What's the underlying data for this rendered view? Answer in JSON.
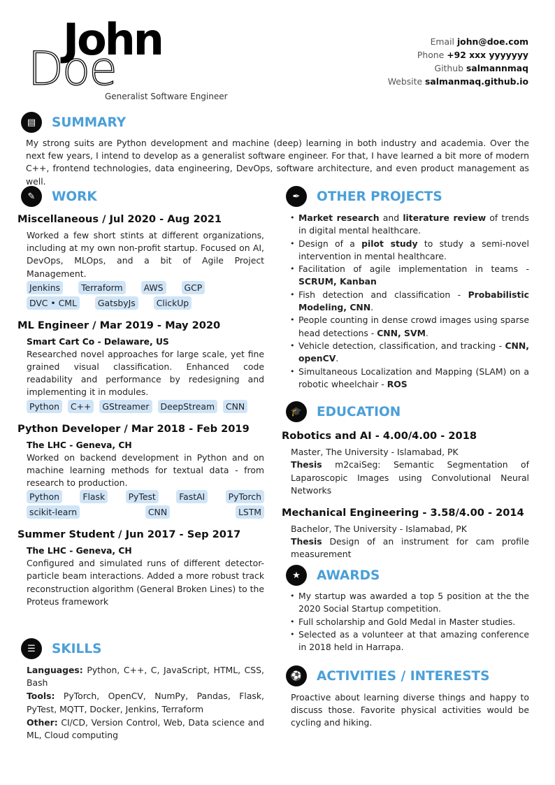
{
  "header": {
    "first_name": "John",
    "last_name": "Doe",
    "tagline": "Generalist Software Engineer",
    "contacts": [
      {
        "label": "Email",
        "value": "john@doe.com"
      },
      {
        "label": "Phone",
        "value": "+92 xxx yyyyyyy"
      },
      {
        "label": "Github",
        "value": "salmannmaq"
      },
      {
        "label": "Website",
        "value": "salmanmaq.github.io"
      }
    ]
  },
  "summary": {
    "title": "SUMMARY",
    "icon": "document-icon",
    "text": "My strong suits are Python development and machine (deep) learning in both industry and academia. Over the next few years, I intend to develop as a generalist software engineer. For that, I have learned a bit more of modern C++, frontend technologies, data engineering, DevOps, software architecture, and even product management as well."
  },
  "work": {
    "title": "WORK",
    "icon": "pencil-icon",
    "jobs": [
      {
        "title": "Miscellaneous / Jul 2020 - Aug 2021",
        "company": "",
        "desc": "Worked a few short stints at different organizations, including at my own non-profit startup. Focused on AI, DevOps, MLOps, and a bit of Agile Project Management.",
        "tags": [
          "Jenkins",
          "Terraform",
          "AWS",
          "GCP",
          "DVC • CML",
          "GatsbyJs",
          "ClickUp"
        ]
      },
      {
        "title": "ML Engineer / Mar 2019 - May 2020",
        "company": "Smart Cart Co - Delaware, US",
        "desc": "Researched novel approaches for large scale, yet fine grained visual classification. Enhanced code readability and performance by redesigning and implementing it in modules.",
        "tags": [
          "Python",
          "C++",
          "GStreamer",
          "DeepStream",
          "CNN"
        ]
      },
      {
        "title": "Python Developer / Mar 2018 - Feb 2019",
        "company": "The LHC - Geneva, CH",
        "desc": "Worked on backend development in Python and on machine learning methods for textual data - from research to production.",
        "tags": [
          "Python",
          "Flask",
          "PyTest",
          "FastAI",
          "PyTorch",
          "scikit-learn",
          "CNN",
          "LSTM"
        ]
      },
      {
        "title": "Summer Student / Jun 2017 - Sep 2017",
        "company": "The LHC - Geneva, CH",
        "desc": "Configured and simulated runs of different detector-particle beam interactions. Added a more robust track reconstruction algorithm (General Broken Lines) to the Proteus framework",
        "tags": []
      }
    ]
  },
  "skills": {
    "title": "SKILLS",
    "icon": "list-icon",
    "items": [
      {
        "label": "Languages:",
        "value": "Python, C++, C, JavaScript, HTML, CSS, Bash"
      },
      {
        "label": "Tools:",
        "value": "PyTorch, OpenCV, NumPy, Pandas, Flask, PyTest, MQTT, Docker, Jenkins, Terraform"
      },
      {
        "label": "Other:",
        "value": "CI/CD, Version Control, Web, Data science and ML, Cloud computing"
      }
    ]
  },
  "projects": {
    "title": "OTHER PROJECTS",
    "icon": "brush-icon",
    "items": [
      [
        {
          "b": "Market research"
        },
        {
          "t": " and "
        },
        {
          "b": "literature review"
        },
        {
          "t": " of trends in digital mental healthcare."
        }
      ],
      [
        {
          "t": "Design of a "
        },
        {
          "b": "pilot study"
        },
        {
          "t": " to study a semi-novel intervention in mental healthcare."
        }
      ],
      [
        {
          "t": "Facilitation of agile implementation in teams - "
        },
        {
          "b": "SCRUM, Kanban"
        }
      ],
      [
        {
          "t": "Fish detection and classification - "
        },
        {
          "b": "Probabilistic Modeling, CNN"
        },
        {
          "t": "."
        }
      ],
      [
        {
          "t": "People counting in dense crowd images using sparse head detections - "
        },
        {
          "b": "CNN, SVM"
        },
        {
          "t": "."
        }
      ],
      [
        {
          "t": "Vehicle detection, classification, and tracking - "
        },
        {
          "b": "CNN, openCV"
        },
        {
          "t": "."
        }
      ],
      [
        {
          "t": "Simultaneous Localization and Mapping (SLAM) on a robotic wheelchair - "
        },
        {
          "b": "ROS"
        }
      ]
    ]
  },
  "education": {
    "title": "EDUCATION",
    "icon": "graduation-cap-icon",
    "degrees": [
      {
        "title": "Robotics and AI - 4.00/4.00 - 2018",
        "school": "Master, The University - Islamabad, PK",
        "thesis_label": "Thesis",
        "thesis": "m2caiSeg: Semantic Segmentation of Laparoscopic Images using Convolutional Neural Networks"
      },
      {
        "title": "Mechanical Engineering - 3.58/4.00 - 2014",
        "school": "Bachelor, The University - Islamabad, PK",
        "thesis_label": "Thesis",
        "thesis": "Design of an instrument for cam profile measurement"
      }
    ]
  },
  "awards": {
    "title": "AWARDS",
    "icon": "star-icon",
    "items": [
      "My startup was awarded a top 5 position at the the 2020 Social Startup competition.",
      "Full scholarship and Gold Medal in Master studies.",
      "Selected as a volunteer at that amazing conference in 2018 held in Harrapa."
    ]
  },
  "activities": {
    "title": "ACTIVITIES / INTERESTS",
    "icon": "soccer-ball-icon",
    "text": "Proactive about learning diverse things and happy to discuss those. Favorite physical activities would be cycling and hiking."
  },
  "colors": {
    "accent": "#4a9fd8",
    "tag_bg": "#cfe4f7"
  }
}
